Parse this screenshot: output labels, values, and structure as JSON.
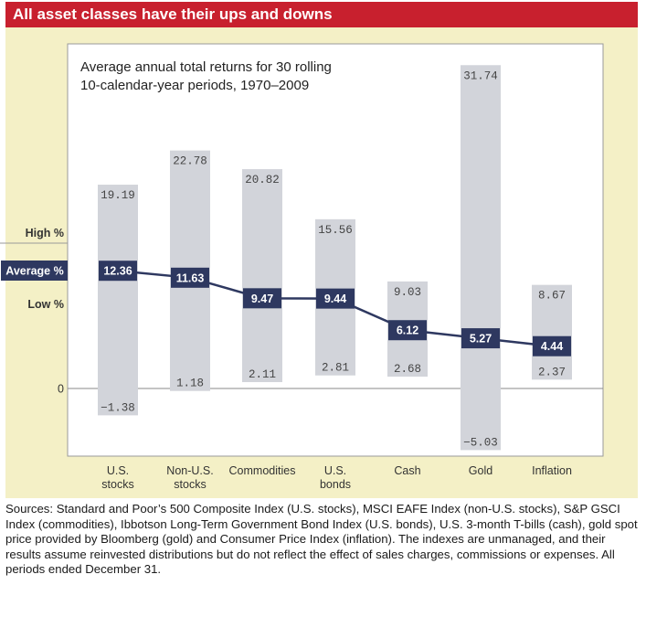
{
  "banner": {
    "title": "All asset classes have their ups and downs"
  },
  "colors": {
    "banner": "#c8202e",
    "panel": "#f4f0c6",
    "range_bar": "#d2d4da",
    "avg_box": "#2e3860",
    "line": "#2e3860"
  },
  "chart_data": {
    "type": "range_line",
    "title_lines": [
      "Average annual total returns for 30 rolling",
      "10-calendar-year periods, 1970–2009"
    ],
    "legend_labels": [
      "High %",
      "Average %",
      "Low %"
    ],
    "zero_label": "0",
    "ylim": [
      -7,
      35
    ],
    "categories": [
      {
        "lines": [
          "U.S.",
          "stocks"
        ],
        "high": 19.19,
        "avg": 12.36,
        "low": -1.38,
        "high_label": "19.19",
        "avg_label": "12.36",
        "low_label": "−1.38"
      },
      {
        "lines": [
          "Non-U.S.",
          "stocks"
        ],
        "high": 22.78,
        "avg": 11.63,
        "low": 1.18,
        "high_label": "22.78",
        "avg_label": "11.63",
        "low_label": "1.18"
      },
      {
        "lines": [
          "Commodities"
        ],
        "high": 20.82,
        "avg": 9.47,
        "low": 2.11,
        "high_label": "20.82",
        "avg_label": "9.47",
        "low_label": "2.11"
      },
      {
        "lines": [
          "U.S.",
          "bonds"
        ],
        "high": 15.56,
        "avg": 9.44,
        "low": 2.81,
        "high_label": "15.56",
        "avg_label": "9.44",
        "low_label": "2.81"
      },
      {
        "lines": [
          "Cash"
        ],
        "high": 9.03,
        "avg": 6.12,
        "low": 2.68,
        "high_label": "9.03",
        "avg_label": "6.12",
        "low_label": "2.68"
      },
      {
        "lines": [
          "Gold"
        ],
        "high": 31.74,
        "avg": 5.27,
        "low": -5.03,
        "high_label": "31.74",
        "avg_label": "5.27",
        "low_label": "−5.03"
      },
      {
        "lines": [
          "Inflation"
        ],
        "high": 8.67,
        "avg": 4.44,
        "low": 2.37,
        "high_label": "8.67",
        "avg_label": "4.44",
        "low_label": "2.37"
      }
    ]
  },
  "sources": "Sources: Standard and Poor’s 500 Composite Index (U.S. stocks), MSCI EAFE Index (non-U.S. stocks), S&P GSCI Index (commodities), Ibbotson Long-Term Government Bond Index (U.S. bonds), U.S. 3-month T-bills (cash), gold spot price provided by Bloomberg (gold) and Consumer Price Index (inflation). The indexes are unmanaged, and their results assume reinvested distributions but do not reflect the effect of sales charges, commissions or expenses. All periods ended December 31."
}
